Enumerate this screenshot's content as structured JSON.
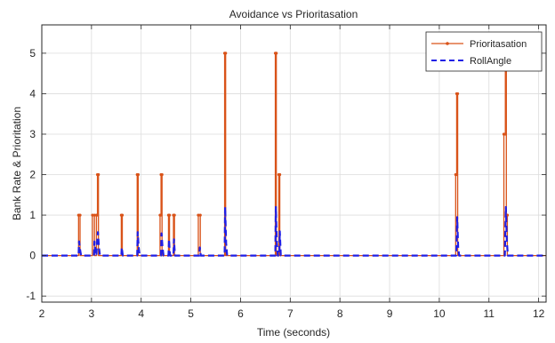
{
  "chart_data": {
    "type": "line",
    "title": "Avoidance vs Prioritasation",
    "xlabel": "Time (seconds)",
    "ylabel": "Bank Rate & Prioritation",
    "xlim": [
      2,
      12.15
    ],
    "ylim": [
      -1.15,
      5.7
    ],
    "xticks": [
      2,
      3,
      4,
      5,
      6,
      7,
      8,
      9,
      10,
      11,
      12
    ],
    "yticks": [
      -1,
      0,
      1,
      2,
      3,
      4,
      5
    ],
    "grid": true,
    "legend_position": "top-right",
    "series": [
      {
        "name": "Prioritasation",
        "color": "#d95319",
        "style": "solid",
        "marker": "dot",
        "points": [
          [
            2.0,
            0
          ],
          [
            2.74,
            0
          ],
          [
            2.74,
            1
          ],
          [
            2.77,
            1
          ],
          [
            2.77,
            0
          ],
          [
            3.02,
            0
          ],
          [
            3.02,
            1
          ],
          [
            3.06,
            1
          ],
          [
            3.06,
            0
          ],
          [
            3.1,
            0
          ],
          [
            3.1,
            1
          ],
          [
            3.12,
            1
          ],
          [
            3.12,
            2
          ],
          [
            3.14,
            2
          ],
          [
            3.14,
            0
          ],
          [
            3.6,
            0
          ],
          [
            3.6,
            1
          ],
          [
            3.62,
            1
          ],
          [
            3.62,
            0
          ],
          [
            3.92,
            0
          ],
          [
            3.92,
            2
          ],
          [
            3.94,
            2
          ],
          [
            3.94,
            0
          ],
          [
            4.38,
            0
          ],
          [
            4.38,
            1
          ],
          [
            4.4,
            1
          ],
          [
            4.4,
            2
          ],
          [
            4.42,
            2
          ],
          [
            4.42,
            0
          ],
          [
            4.55,
            0
          ],
          [
            4.55,
            1
          ],
          [
            4.57,
            1
          ],
          [
            4.57,
            0
          ],
          [
            4.65,
            0
          ],
          [
            4.65,
            1
          ],
          [
            4.67,
            1
          ],
          [
            4.67,
            0
          ],
          [
            5.15,
            0
          ],
          [
            5.15,
            1
          ],
          [
            5.19,
            1
          ],
          [
            5.19,
            0
          ],
          [
            5.68,
            0
          ],
          [
            5.68,
            5
          ],
          [
            5.7,
            5
          ],
          [
            5.7,
            0
          ],
          [
            6.7,
            0
          ],
          [
            6.7,
            5
          ],
          [
            6.72,
            5
          ],
          [
            6.72,
            0
          ],
          [
            6.77,
            0
          ],
          [
            6.77,
            2
          ],
          [
            6.79,
            2
          ],
          [
            6.79,
            0
          ],
          [
            10.33,
            0
          ],
          [
            10.33,
            2
          ],
          [
            10.35,
            2
          ],
          [
            10.35,
            4
          ],
          [
            10.37,
            4
          ],
          [
            10.37,
            0
          ],
          [
            11.3,
            0
          ],
          [
            11.3,
            3
          ],
          [
            11.33,
            3
          ],
          [
            11.33,
            4.7
          ],
          [
            11.35,
            4.7
          ],
          [
            11.35,
            1
          ],
          [
            11.37,
            1
          ],
          [
            11.37,
            0
          ],
          [
            12.15,
            0
          ]
        ]
      },
      {
        "name": "RollAngle",
        "color": "#1f1fe6",
        "style": "dashed",
        "marker": "none",
        "points": [
          [
            2.0,
            0
          ],
          [
            2.74,
            0
          ],
          [
            2.75,
            0.35
          ],
          [
            2.77,
            0.15
          ],
          [
            2.79,
            0
          ],
          [
            3.05,
            0
          ],
          [
            3.06,
            0.35
          ],
          [
            3.08,
            0.1
          ],
          [
            3.1,
            0
          ],
          [
            3.11,
            0.3
          ],
          [
            3.13,
            0.58
          ],
          [
            3.15,
            0.2
          ],
          [
            3.17,
            0
          ],
          [
            3.6,
            0
          ],
          [
            3.61,
            0.2
          ],
          [
            3.63,
            0
          ],
          [
            3.92,
            0
          ],
          [
            3.93,
            0.58
          ],
          [
            3.95,
            0.2
          ],
          [
            3.97,
            0
          ],
          [
            4.4,
            0
          ],
          [
            4.41,
            0.55
          ],
          [
            4.43,
            0.2
          ],
          [
            4.45,
            0
          ],
          [
            4.55,
            0
          ],
          [
            4.56,
            0.4
          ],
          [
            4.58,
            0
          ],
          [
            4.65,
            0
          ],
          [
            4.66,
            0.4
          ],
          [
            4.68,
            0
          ],
          [
            5.17,
            0
          ],
          [
            5.18,
            0.2
          ],
          [
            5.2,
            0
          ],
          [
            5.68,
            0
          ],
          [
            5.69,
            1.2
          ],
          [
            5.71,
            0.3
          ],
          [
            5.73,
            0
          ],
          [
            6.7,
            0
          ],
          [
            6.71,
            1.2
          ],
          [
            6.73,
            0.3
          ],
          [
            6.75,
            0
          ],
          [
            6.78,
            0
          ],
          [
            6.79,
            0.6
          ],
          [
            6.81,
            0
          ],
          [
            10.34,
            0
          ],
          [
            10.36,
            0.95
          ],
          [
            10.38,
            0.2
          ],
          [
            10.4,
            0
          ],
          [
            11.32,
            0
          ],
          [
            11.34,
            1.2
          ],
          [
            11.36,
            0.35
          ],
          [
            11.38,
            0
          ],
          [
            12.15,
            0
          ]
        ]
      }
    ]
  }
}
